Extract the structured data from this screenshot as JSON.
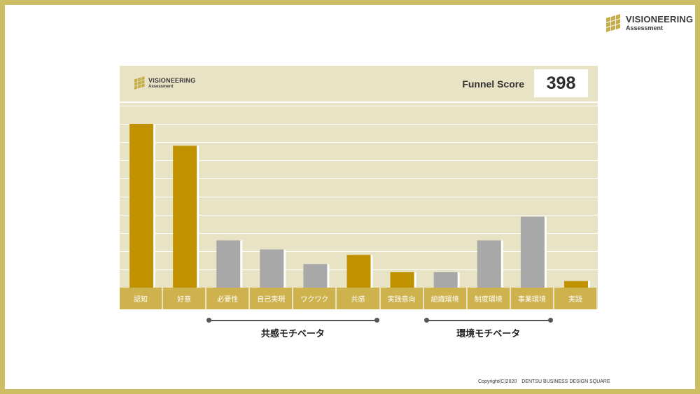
{
  "brand": {
    "title": "VISIONEERING",
    "subtitle": "Assessment",
    "accent_color": "#cdbd63"
  },
  "score": {
    "label": "Funnel Score",
    "value": "398"
  },
  "chart_data": {
    "type": "bar",
    "categories": [
      "認知",
      "好意",
      "必要性",
      "自己実現",
      "ワクワク",
      "共感",
      "実践意向",
      "組織環境",
      "制度環境",
      "事業環境",
      "実践"
    ],
    "values": [
      90,
      78,
      26,
      21,
      13,
      18,
      8.5,
      8.5,
      26,
      39,
      3.6
    ],
    "bar_colors": [
      "#c09200",
      "#c09200",
      "#a8a8a8",
      "#a8a8a8",
      "#a8a8a8",
      "#c09200",
      "#c09200",
      "#a8a8a8",
      "#a8a8a8",
      "#a8a8a8",
      "#c09200"
    ],
    "ylim": [
      0,
      100
    ],
    "grid": true,
    "groups": [
      {
        "label": "共感モチベータ",
        "from": "必要性",
        "to": "共感"
      },
      {
        "label": "環境モチベータ",
        "from": "組織環境",
        "to": "事業環境"
      }
    ]
  },
  "footer": {
    "copyright": "Copyright(C)2020　DENTSU BUSINESS DESIGN SQUARE"
  }
}
